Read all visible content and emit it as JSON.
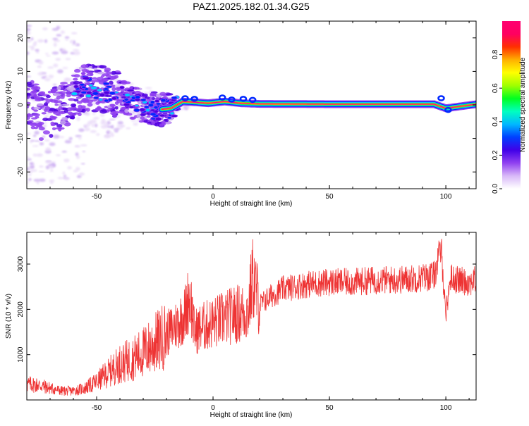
{
  "figure": {
    "title": "PAZ1.2025.182.01.34.G25"
  },
  "colors": {
    "snr_line": "#ee3333",
    "colormap": [
      "#ffffff",
      "#e8d8f8",
      "#c8a8f0",
      "#9040f0",
      "#5000e0",
      "#0028ff",
      "#00ccff",
      "#00ff40",
      "#b0ff00",
      "#ffff00",
      "#ffa000",
      "#ff2000",
      "#ff0088",
      "#ff0040"
    ]
  },
  "chart_data": [
    {
      "type": "heatmap",
      "xlabel": "Height of straight line (km)",
      "ylabel": "Frequency (Hz)",
      "xlim": [
        -80,
        113
      ],
      "ylim": [
        -25,
        25
      ],
      "x_ticks": [
        -50,
        0,
        50,
        100
      ],
      "y_ticks": [
        -20,
        -10,
        0,
        10,
        20
      ],
      "colorbar": {
        "label": "Normalized spectral amplitude",
        "range": [
          0,
          1
        ],
        "ticks": [
          "0.0",
          "0.2",
          "0.4",
          "0.6",
          "0.8"
        ]
      },
      "ridge": [
        {
          "x": -75,
          "f": -3.5,
          "amp": 0.2
        },
        {
          "x": -68,
          "f": -2.0,
          "amp": 0.25
        },
        {
          "x": -62,
          "f": 1.0,
          "amp": 0.25
        },
        {
          "x": -55,
          "f": 5.5,
          "amp": 0.3
        },
        {
          "x": -48,
          "f": 4.5,
          "amp": 0.3
        },
        {
          "x": -42,
          "f": 3.5,
          "amp": 0.3
        },
        {
          "x": -36,
          "f": 1.5,
          "amp": 0.32
        },
        {
          "x": -30,
          "f": -0.5,
          "amp": 0.32
        },
        {
          "x": -24,
          "f": -1.5,
          "amp": 0.35
        },
        {
          "x": -18,
          "f": -1.0,
          "amp": 0.4
        },
        {
          "x": -13,
          "f": 1.0,
          "amp": 0.6
        },
        {
          "x": -8,
          "f": 0.8,
          "amp": 0.8
        },
        {
          "x": -2,
          "f": 0.5,
          "amp": 0.85
        },
        {
          "x": 5,
          "f": 1.0,
          "amp": 0.8
        },
        {
          "x": 12,
          "f": 0.5,
          "amp": 0.85
        },
        {
          "x": 20,
          "f": 0.3,
          "amp": 0.9
        },
        {
          "x": 55,
          "f": 0.2,
          "amp": 0.95
        },
        {
          "x": 95,
          "f": 0.2,
          "amp": 0.9
        },
        {
          "x": 100,
          "f": -1.0,
          "amp": 0.7
        },
        {
          "x": 113,
          "f": 0.2,
          "amp": 0.95
        }
      ]
    },
    {
      "type": "line",
      "xlabel": "Height of straight line (km)",
      "ylabel": "SNR (10 * v/v)",
      "xlim": [
        -80,
        113
      ],
      "ylim": [
        0,
        3700
      ],
      "x_ticks": [
        -50,
        0,
        50,
        100
      ],
      "y_ticks": [
        1000,
        2000,
        3000
      ],
      "series": [
        {
          "values_note_free": true,
          "x": [
            -80,
            -75,
            -70,
            -65,
            -60,
            -55,
            -50,
            -45,
            -40,
            -35,
            -30,
            -25,
            -20,
            -15,
            -12,
            -10,
            -8,
            -5,
            0,
            5,
            10,
            15,
            17,
            20,
            25,
            30,
            40,
            50,
            60,
            70,
            80,
            90,
            95,
            98,
            100,
            102,
            105,
            110,
            113
          ],
          "y": [
            350,
            330,
            260,
            200,
            200,
            260,
            400,
            600,
            800,
            900,
            1050,
            1250,
            1450,
            1700,
            1900,
            2350,
            1500,
            1600,
            1700,
            1800,
            1900,
            1950,
            2700,
            2100,
            2300,
            2450,
            2550,
            2600,
            2600,
            2650,
            2650,
            2700,
            2750,
            3350,
            1900,
            2700,
            2650,
            2600,
            2650
          ]
        }
      ]
    }
  ]
}
